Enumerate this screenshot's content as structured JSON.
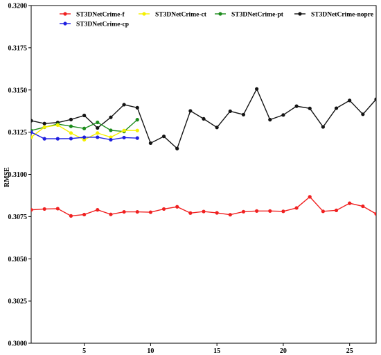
{
  "chart_data": {
    "type": "line",
    "title": "",
    "xlabel": "",
    "ylabel": "RMSE",
    "xlim": [
      1,
      27
    ],
    "ylim": [
      0.3,
      0.32
    ],
    "x_ticks": [
      5,
      10,
      15,
      20,
      25
    ],
    "y_ticks": [
      0.3,
      0.3025,
      0.305,
      0.3075,
      0.31,
      0.3125,
      0.315,
      0.3175,
      0.32
    ],
    "y_tick_labels": [
      "0.3000",
      "0.3025",
      "0.3050",
      "0.3075",
      "0.3100",
      "0.3125",
      "0.3150",
      "0.3175",
      "0.3200"
    ],
    "grid": false,
    "legend_position": "top",
    "series": [
      {
        "name": "ST3DNetCrime-f",
        "color": "#f02020",
        "x": [
          1,
          2,
          3,
          4,
          5,
          6,
          7,
          8,
          9,
          10,
          11,
          12,
          13,
          14,
          15,
          16,
          17,
          18,
          19,
          20,
          21,
          22,
          23,
          24,
          25,
          26,
          27
        ],
        "y": [
          0.3079,
          0.30795,
          0.30797,
          0.30754,
          0.30762,
          0.3079,
          0.30763,
          0.30778,
          0.30778,
          0.30776,
          0.30795,
          0.30808,
          0.30771,
          0.3078,
          0.30772,
          0.30761,
          0.30779,
          0.30783,
          0.30783,
          0.30781,
          0.30801,
          0.30867,
          0.30781,
          0.30787,
          0.30829,
          0.30811,
          0.30766
        ]
      },
      {
        "name": "ST3DNetCrime-cp",
        "color": "#1f1fe0",
        "x": [
          1,
          2,
          3,
          4,
          5,
          6,
          7,
          8,
          9
        ],
        "y": [
          0.3125,
          0.31211,
          0.31211,
          0.31212,
          0.3122,
          0.3122,
          0.31205,
          0.31218,
          0.31215
        ]
      },
      {
        "name": "ST3DNetCrime-ct",
        "color": "#f5f000",
        "x": [
          1,
          2,
          3,
          4,
          5,
          6,
          7,
          8,
          9
        ],
        "y": [
          0.3122,
          0.3128,
          0.31292,
          0.31245,
          0.31205,
          0.31245,
          0.3122,
          0.3126,
          0.3126
        ]
      },
      {
        "name": "ST3DNetCrime-pt",
        "color": "#1c8c1c",
        "x": [
          1,
          2,
          3,
          4,
          5,
          6,
          7,
          8,
          9
        ],
        "y": [
          0.3126,
          0.31279,
          0.31298,
          0.31285,
          0.31272,
          0.31308,
          0.31261,
          0.31254,
          0.31324
        ]
      },
      {
        "name": "ST3DNetCrime-nopre",
        "color": "#141414",
        "x": [
          1,
          2,
          3,
          4,
          5,
          6,
          7,
          8,
          9,
          10,
          11,
          12,
          13,
          14,
          15,
          16,
          17,
          18,
          19,
          20,
          21,
          22,
          23,
          24,
          25,
          26,
          27
        ],
        "y": [
          0.31318,
          0.31301,
          0.31307,
          0.31325,
          0.31349,
          0.31275,
          0.31338,
          0.31413,
          0.31395,
          0.31185,
          0.31225,
          0.31153,
          0.31376,
          0.31329,
          0.31278,
          0.31374,
          0.31354,
          0.31506,
          0.31324,
          0.31352,
          0.31404,
          0.31391,
          0.31281,
          0.31392,
          0.31438,
          0.31356,
          0.31445
        ]
      }
    ]
  }
}
